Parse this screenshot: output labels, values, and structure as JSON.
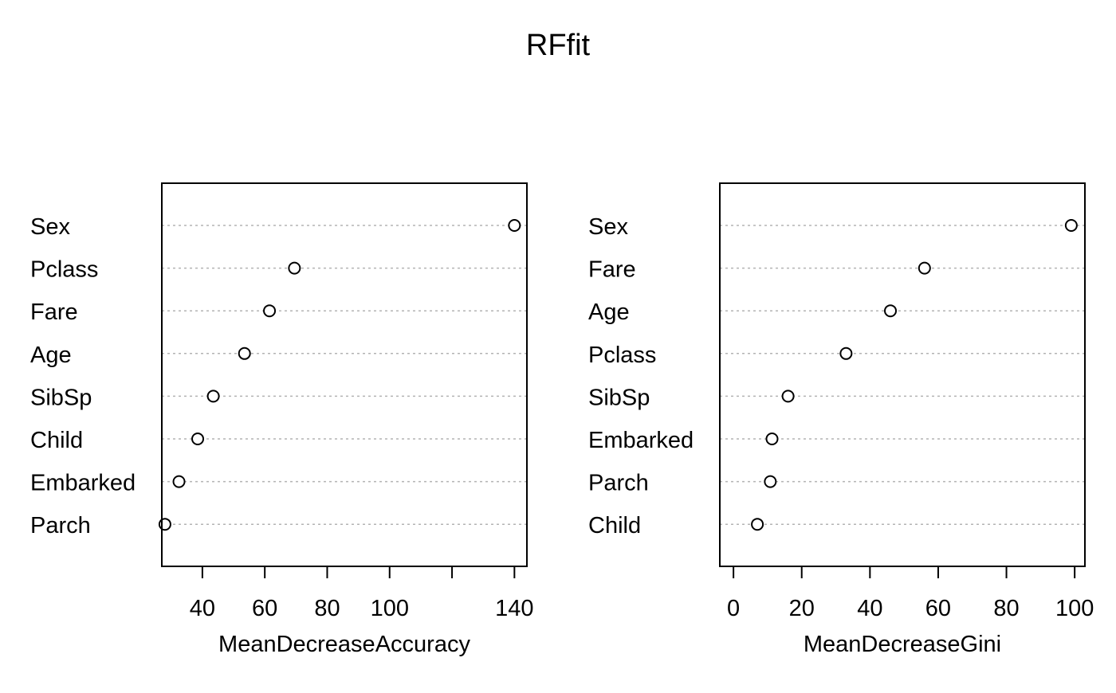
{
  "title": "RFfit",
  "chart_data": [
    {
      "type": "scatter",
      "subtype": "dotchart",
      "xlabel": "MeanDecreaseAccuracy",
      "categories": [
        "Sex",
        "Pclass",
        "Fare",
        "Age",
        "SibSp",
        "Child",
        "Embarked",
        "Parch"
      ],
      "values": [
        140,
        69.5,
        61.5,
        53.5,
        43.5,
        38.5,
        32.5,
        28
      ],
      "xticks": [
        40,
        60,
        80,
        100,
        120,
        140
      ],
      "xtick_labels": [
        "40",
        "60",
        "80",
        "100",
        "",
        "140"
      ],
      "xlim": [
        27,
        144
      ],
      "grid": "dotted horizontal lines"
    },
    {
      "type": "scatter",
      "subtype": "dotchart",
      "xlabel": "MeanDecreaseGini",
      "categories": [
        "Sex",
        "Fare",
        "Age",
        "Pclass",
        "SibSp",
        "Embarked",
        "Parch",
        "Child"
      ],
      "values": [
        99,
        56,
        46,
        33,
        16,
        11.3,
        10.8,
        7
      ],
      "xticks": [
        0,
        20,
        40,
        60,
        80,
        100
      ],
      "xtick_labels": [
        "0",
        "20",
        "40",
        "60",
        "80",
        "100"
      ],
      "xlim": [
        -4,
        103
      ],
      "grid": "dotted horizontal lines"
    }
  ]
}
